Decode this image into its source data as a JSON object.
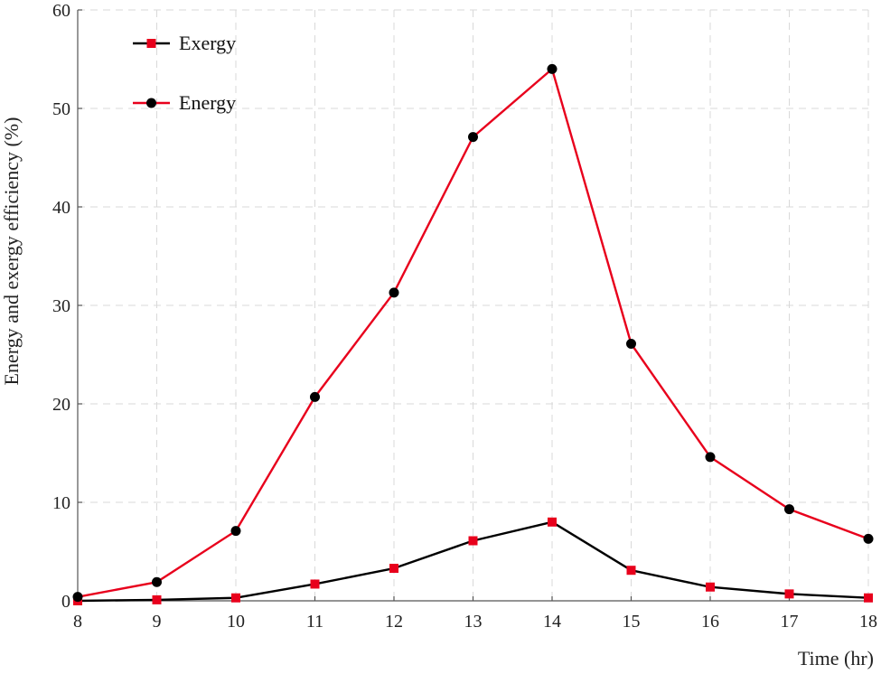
{
  "chart_data": {
    "type": "line",
    "title": "",
    "xlabel": "Time (hr)",
    "ylabel": "Energy and exergy efficiency (%)",
    "xlim": [
      8,
      18
    ],
    "ylim": [
      0,
      60
    ],
    "x_ticks": [
      8,
      9,
      10,
      11,
      12,
      13,
      14,
      15,
      16,
      17,
      18
    ],
    "y_ticks": [
      0,
      10,
      20,
      30,
      40,
      50,
      60
    ],
    "x": [
      8,
      9,
      10,
      11,
      12,
      13,
      14,
      15,
      16,
      17,
      18
    ],
    "grid": true,
    "legend_position": "top-left",
    "series": [
      {
        "name": "Exergy",
        "color": "#000000",
        "marker_color": "#e8001c",
        "marker": "square",
        "values": [
          0.0,
          0.1,
          0.3,
          1.7,
          3.3,
          6.1,
          8.0,
          3.1,
          1.4,
          0.7,
          0.3
        ]
      },
      {
        "name": "Energy",
        "color": "#e8001c",
        "marker_color": "#000000",
        "marker": "circle",
        "values": [
          0.4,
          1.9,
          7.1,
          20.7,
          31.3,
          47.1,
          54.0,
          26.1,
          14.6,
          9.3,
          6.3
        ]
      }
    ]
  }
}
